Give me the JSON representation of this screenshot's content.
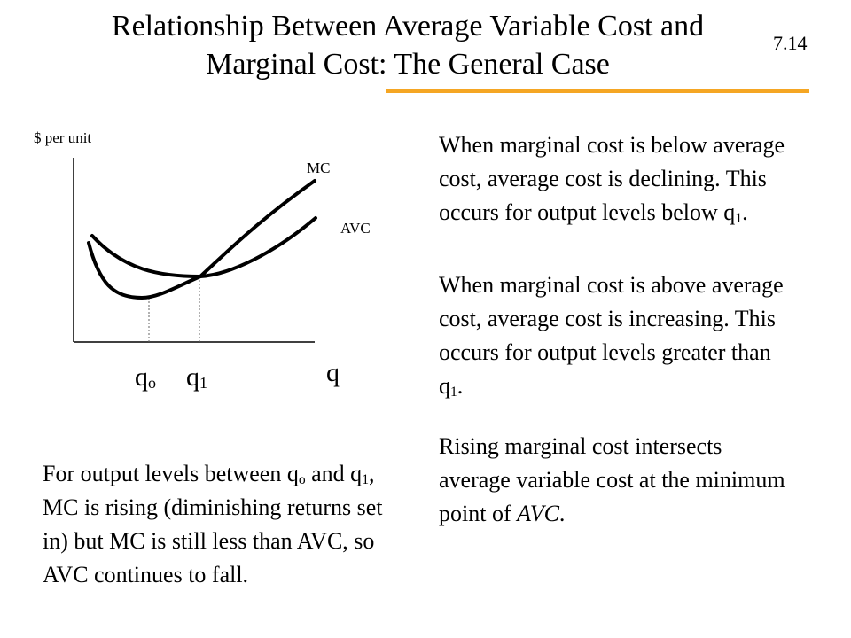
{
  "slide": {
    "title_line1": "Relationship Between Average Variable Cost and",
    "title_line2": "Marginal Cost: The General Case",
    "number": "7.14",
    "accent_color": "#F5A623"
  },
  "graph": {
    "y_axis_label": "$ per unit",
    "x_axis_label": "q",
    "mc_label": "MC",
    "avc_label": "AVC",
    "q0_base": "q",
    "q0_sub": "o",
    "q1_base": "q",
    "q1_sub": "1"
  },
  "text": {
    "p1_main": "When marginal cost is below average cost, average cost is declining.  This occurs for output levels below q",
    "p1_sub": "1",
    "p1_end": ".",
    "p2_main": "When marginal cost is above average cost, average cost is increasing. This occurs for output levels greater than q",
    "p2_sub": "1",
    "p2_end": ".",
    "p3_main": "Rising marginal cost intersects average variable cost at the minimum point of ",
    "p3_em": "AVC",
    "p3_end": ".",
    "p4_a": "For output levels between q",
    "p4_sub_a": "o",
    "p4_b": " and q",
    "p4_sub_b": "1",
    "p4_c": ", MC is rising (diminishing returns set in) but MC is still less than AVC, so AVC continues to fall."
  }
}
